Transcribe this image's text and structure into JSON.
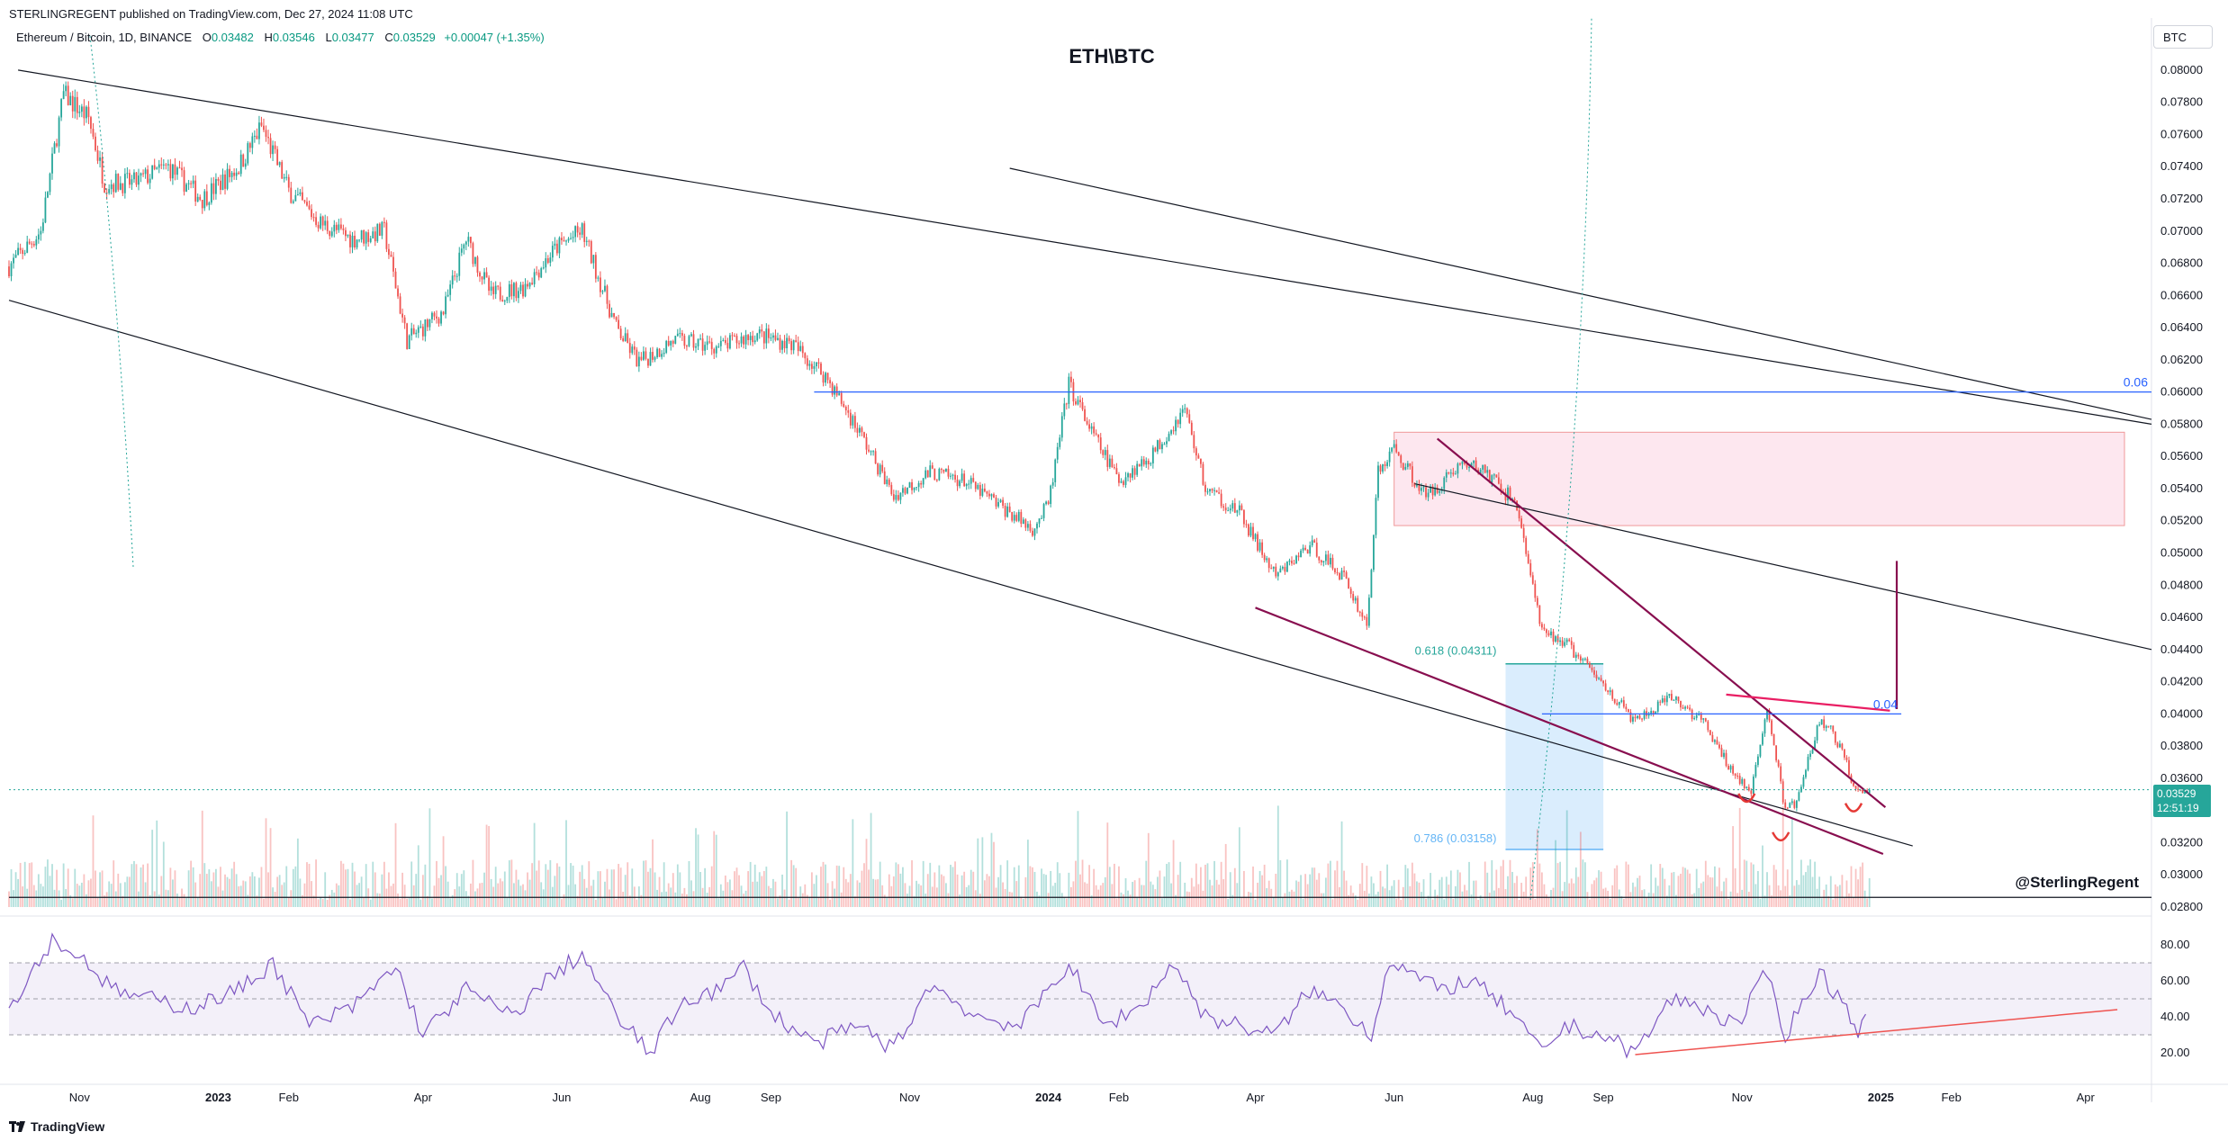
{
  "publisher": "STERLINGREGENT published on TradingView.com, Dec 27, 2024 11:08 UTC",
  "legend": {
    "symbol": "Ethereum / Bitcoin, 1D, BINANCE",
    "open_label": "O",
    "open": "0.03482",
    "high_label": "H",
    "high": "0.03546",
    "low_label": "L",
    "low": "0.03477",
    "close_label": "C",
    "close": "0.03529",
    "change": "+0.00047 (+1.35%)"
  },
  "currency": "BTC",
  "last_price": {
    "value": "0.03529",
    "countdown": "12:51:19"
  },
  "footer": {
    "brand": "TradingView"
  },
  "colors": {
    "up": "#26a69a",
    "down": "#ef5350",
    "accent_line": "#2962ff",
    "rsi": "#7e57c2",
    "trendline": "#880e4f"
  },
  "chart_data": [
    {
      "type": "candlestick",
      "title": "ETH\\BTC",
      "watermark": "@SterlingRegent",
      "y_axis": {
        "range": [
          0.028,
          0.081
        ],
        "ticks": [
          "0.08000",
          "0.07800",
          "0.07600",
          "0.07400",
          "0.07200",
          "0.07000",
          "0.06800",
          "0.06600",
          "0.06400",
          "0.06200",
          "0.06000",
          "0.05800",
          "0.05600",
          "0.05400",
          "0.05200",
          "0.05000",
          "0.04800",
          "0.04600",
          "0.04400",
          "0.04200",
          "0.04000",
          "0.03800",
          "0.03600",
          "0.03400",
          "0.03200",
          "0.03000",
          "0.02800"
        ]
      },
      "x_axis": {
        "range": [
          "2022-10-01",
          "2025-04-30"
        ],
        "ticks": [
          {
            "date": "2022-11-01",
            "label": "Nov"
          },
          {
            "date": "2023-01-01",
            "label": "2023"
          },
          {
            "date": "2023-02-01",
            "label": "Feb"
          },
          {
            "date": "2023-04-01",
            "label": "Apr"
          },
          {
            "date": "2023-06-01",
            "label": "Jun"
          },
          {
            "date": "2023-08-01",
            "label": "Aug"
          },
          {
            "date": "2023-09-01",
            "label": "Sep"
          },
          {
            "date": "2023-11-01",
            "label": "Nov"
          },
          {
            "date": "2024-01-01",
            "label": "2024"
          },
          {
            "date": "2024-02-01",
            "label": "Feb"
          },
          {
            "date": "2024-04-01",
            "label": "Apr"
          },
          {
            "date": "2024-06-01",
            "label": "Jun"
          },
          {
            "date": "2024-08-01",
            "label": "Aug"
          },
          {
            "date": "2024-09-01",
            "label": "Sep"
          },
          {
            "date": "2024-11-01",
            "label": "Nov"
          },
          {
            "date": "2025-01-01",
            "label": "2025"
          },
          {
            "date": "2025-02-01",
            "label": "Feb"
          },
          {
            "date": "2025-04-01",
            "label": "Apr"
          }
        ]
      },
      "price_path": [
        [
          "2022-10-01",
          0.0678
        ],
        [
          "2022-10-15",
          0.07
        ],
        [
          "2022-10-25",
          0.0785
        ],
        [
          "2022-11-05",
          0.077
        ],
        [
          "2022-11-12",
          0.073
        ],
        [
          "2022-11-25",
          0.073
        ],
        [
          "2022-12-10",
          0.074
        ],
        [
          "2022-12-25",
          0.072
        ],
        [
          "2023-01-10",
          0.074
        ],
        [
          "2023-01-20",
          0.0765
        ],
        [
          "2023-02-01",
          0.0725
        ],
        [
          "2023-02-15",
          0.0705
        ],
        [
          "2023-03-01",
          0.0695
        ],
        [
          "2023-03-15",
          0.07
        ],
        [
          "2023-03-25",
          0.0632
        ],
        [
          "2023-04-10",
          0.065
        ],
        [
          "2023-04-20",
          0.0695
        ],
        [
          "2023-05-01",
          0.066
        ],
        [
          "2023-05-15",
          0.0665
        ],
        [
          "2023-05-30",
          0.069
        ],
        [
          "2023-06-10",
          0.07
        ],
        [
          "2023-06-25",
          0.064
        ],
        [
          "2023-07-05",
          0.0618
        ],
        [
          "2023-07-20",
          0.0632
        ],
        [
          "2023-08-10",
          0.0628
        ],
        [
          "2023-08-25",
          0.0636
        ],
        [
          "2023-09-10",
          0.063
        ],
        [
          "2023-09-25",
          0.061
        ],
        [
          "2023-10-10",
          0.0575
        ],
        [
          "2023-10-25",
          0.0535
        ],
        [
          "2023-11-10",
          0.055
        ],
        [
          "2023-11-25",
          0.0545
        ],
        [
          "2023-12-10",
          0.053
        ],
        [
          "2023-12-25",
          0.0515
        ],
        [
          "2024-01-01",
          0.053
        ],
        [
          "2024-01-10",
          0.0605
        ],
        [
          "2024-01-20",
          0.0575
        ],
        [
          "2024-02-01",
          0.0545
        ],
        [
          "2024-02-15",
          0.056
        ],
        [
          "2024-03-01",
          0.059
        ],
        [
          "2024-03-10",
          0.054
        ],
        [
          "2024-03-25",
          0.0525
        ],
        [
          "2024-04-10",
          0.0485
        ],
        [
          "2024-04-25",
          0.0505
        ],
        [
          "2024-05-10",
          0.0485
        ],
        [
          "2024-05-20",
          0.0455
        ],
        [
          "2024-05-25",
          0.055
        ],
        [
          "2024-06-01",
          0.0565
        ],
        [
          "2024-06-15",
          0.0535
        ],
        [
          "2024-06-30",
          0.0555
        ],
        [
          "2024-07-10",
          0.0552
        ],
        [
          "2024-07-25",
          0.053
        ],
        [
          "2024-08-05",
          0.045
        ],
        [
          "2024-08-15",
          0.0445
        ],
        [
          "2024-08-31",
          0.042
        ],
        [
          "2024-09-15",
          0.0395
        ],
        [
          "2024-10-01",
          0.041
        ],
        [
          "2024-10-15",
          0.0395
        ],
        [
          "2024-10-25",
          0.037
        ],
        [
          "2024-11-05",
          0.035
        ],
        [
          "2024-11-12",
          0.0405
        ],
        [
          "2024-11-20",
          0.034
        ],
        [
          "2024-11-25",
          0.0345
        ],
        [
          "2024-12-05",
          0.0395
        ],
        [
          "2024-12-10",
          0.039
        ],
        [
          "2024-12-17",
          0.037
        ],
        [
          "2024-12-20",
          0.0355
        ],
        [
          "2024-12-27",
          0.03529
        ]
      ],
      "last_price": 0.03529,
      "horizontal_levels": [
        {
          "price": 0.06,
          "label": "0.06",
          "from": "2023-09-20",
          "to": "2025-04-30"
        },
        {
          "price": 0.04,
          "label": "0.04",
          "from": "2024-08-05",
          "to": "2025-01-10"
        },
        {
          "price": 0.0286,
          "label": "",
          "from": "2022-10-01",
          "to": "2025-04-30"
        }
      ],
      "fib_zone": {
        "from": "2024-07-20",
        "to": "2024-09-01",
        "top": 0.04311,
        "bottom": 0.03158,
        "labels": [
          "0.618 (0.04311)",
          "0.786 (0.03158)"
        ]
      },
      "supply_zone": {
        "from": "2024-06-01",
        "to": "2025-04-30",
        "top": 0.0575,
        "bottom": 0.0517
      },
      "trendlines": [
        {
          "from": [
            "2022-10-05",
            0.08
          ],
          "to": [
            "2025-04-30",
            0.058
          ],
          "color": "#131722"
        },
        {
          "from": [
            "2022-10-01",
            0.0657
          ],
          "to": [
            "2025-01-15",
            0.0318
          ],
          "color": "#131722"
        },
        {
          "from": [
            "2023-12-15",
            0.0739
          ],
          "to": [
            "2025-04-30",
            0.0583
          ],
          "color": "#131722"
        },
        {
          "from": [
            "2024-06-10",
            0.0543
          ],
          "to": [
            "2025-04-30",
            0.044
          ],
          "color": "#131722"
        },
        {
          "from": [
            "2024-04-01",
            0.0466
          ],
          "to": [
            "2025-01-02",
            0.0313
          ],
          "color": "#880e4f"
        },
        {
          "from": [
            "2024-06-20",
            0.0571
          ],
          "to": [
            "2025-01-03",
            0.0342
          ],
          "color": "#880e4f"
        },
        {
          "from": [
            "2024-10-25",
            0.0412
          ],
          "to": [
            "2025-01-05",
            0.0402
          ],
          "color": "#e91e63"
        },
        {
          "from": [
            "2025-01-08",
            0.0495
          ],
          "to": [
            "2025-01-08",
            0.0403
          ],
          "color": "#880e4f"
        }
      ],
      "volume_scale_max": 1.0
    },
    {
      "type": "line",
      "indicator": "RSI",
      "y_axis": {
        "range": [
          10,
          90
        ],
        "ticks": [
          "80.00",
          "60.00",
          "40.00",
          "20.00"
        ]
      },
      "band": {
        "upper": 70,
        "lower": 30,
        "mid": 50
      },
      "rsi_path": [
        [
          "2022-10-01",
          45
        ],
        [
          "2022-10-20",
          83
        ],
        [
          "2022-11-05",
          70
        ],
        [
          "2022-11-15",
          55
        ],
        [
          "2022-12-01",
          50
        ],
        [
          "2022-12-20",
          45
        ],
        [
          "2023-01-10",
          55
        ],
        [
          "2023-01-25",
          70
        ],
        [
          "2023-02-10",
          35
        ],
        [
          "2023-03-01",
          45
        ],
        [
          "2023-03-20",
          68
        ],
        [
          "2023-04-01",
          30
        ],
        [
          "2023-04-20",
          55
        ],
        [
          "2023-05-10",
          40
        ],
        [
          "2023-05-25",
          60
        ],
        [
          "2023-06-10",
          75
        ],
        [
          "2023-06-25",
          40
        ],
        [
          "2023-07-10",
          20
        ],
        [
          "2023-07-25",
          50
        ],
        [
          "2023-08-10",
          55
        ],
        [
          "2023-08-20",
          68
        ],
        [
          "2023-09-01",
          42
        ],
        [
          "2023-09-20",
          25
        ],
        [
          "2023-10-10",
          35
        ],
        [
          "2023-10-25",
          22
        ],
        [
          "2023-11-10",
          58
        ],
        [
          "2023-12-01",
          40
        ],
        [
          "2023-12-20",
          35
        ],
        [
          "2024-01-10",
          70
        ],
        [
          "2024-01-25",
          35
        ],
        [
          "2024-02-10",
          45
        ],
        [
          "2024-02-25",
          70
        ],
        [
          "2024-03-10",
          40
        ],
        [
          "2024-03-25",
          35
        ],
        [
          "2024-04-10",
          30
        ],
        [
          "2024-04-25",
          55
        ],
        [
          "2024-05-10",
          45
        ],
        [
          "2024-05-22",
          30
        ],
        [
          "2024-05-30",
          72
        ],
        [
          "2024-06-20",
          55
        ],
        [
          "2024-07-05",
          60
        ],
        [
          "2024-07-20",
          45
        ],
        [
          "2024-08-05",
          20
        ],
        [
          "2024-08-15",
          35
        ],
        [
          "2024-08-31",
          30
        ],
        [
          "2024-09-15",
          20
        ],
        [
          "2024-10-01",
          50
        ],
        [
          "2024-10-15",
          45
        ],
        [
          "2024-10-30",
          35
        ],
        [
          "2024-11-12",
          65
        ],
        [
          "2024-11-20",
          30
        ],
        [
          "2024-12-05",
          65
        ],
        [
          "2024-12-17",
          45
        ],
        [
          "2024-12-22",
          33
        ],
        [
          "2024-12-27",
          40
        ]
      ],
      "trendline": {
        "from": [
          "2024-09-15",
          19
        ],
        "to": [
          "2025-04-15",
          44
        ]
      }
    }
  ]
}
